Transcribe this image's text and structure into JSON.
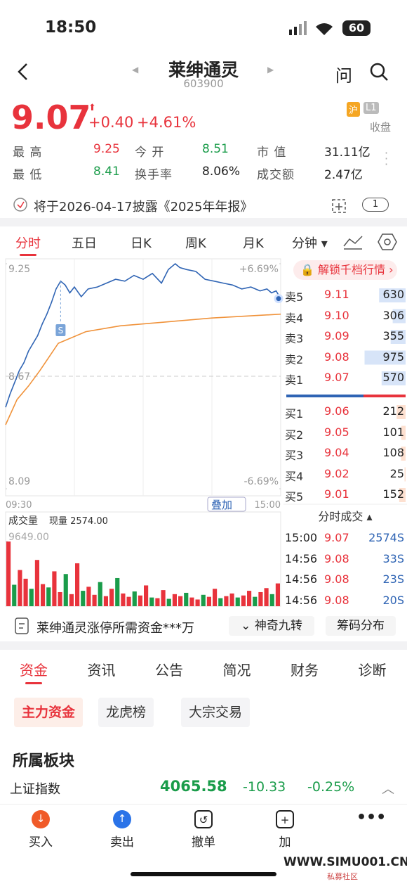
{
  "status": {
    "time": "18:50",
    "battery": "60"
  },
  "header": {
    "title": "莱绅通灵",
    "code": "603900",
    "ask": "问"
  },
  "quote": {
    "price": "9.07",
    "change": "+0.40",
    "pct": "+4.61%",
    "market": "沪",
    "level": "L1",
    "state": "收盘"
  },
  "stats": [
    {
      "label": "最 高",
      "value": "9.25"
    },
    {
      "label": "今 开",
      "value": "8.51"
    },
    {
      "label": "市 值",
      "value": "31.11亿"
    },
    {
      "label": "最 低",
      "value": "8.41"
    },
    {
      "label": "换手率",
      "value": "8.06%"
    },
    {
      "label": "成交额",
      "value": "2.47亿"
    }
  ],
  "notice": "将于2026-04-17披露《2025年年报》",
  "notice_badge": "1",
  "chart_tabs": [
    "分时",
    "五日",
    "日K",
    "周K",
    "月K",
    "分钟"
  ],
  "chart_data": {
    "type": "line",
    "xlim": [
      0,
      240
    ],
    "ylim": [
      8.09,
      9.25
    ],
    "yticks": [
      9.25,
      8.67,
      8.09
    ],
    "y2lim": [
      -6.69,
      6.69
    ],
    "y2ticks": [
      {
        "value": 6.69,
        "label": "+6.69%"
      },
      {
        "value": -6.69,
        "label": "-6.69%"
      }
    ],
    "x_labels": [
      "09:30",
      "15:00"
    ],
    "overlay": "叠加",
    "marker": "S",
    "series": [
      {
        "name": "价格",
        "color": "#2f64b4",
        "x": [
          0,
          4,
          8,
          12,
          16,
          20,
          24,
          28,
          32,
          36,
          40,
          44,
          48,
          52,
          56,
          60,
          66,
          72,
          80,
          88,
          96,
          104,
          112,
          120,
          128,
          136,
          142,
          148,
          152,
          158,
          166,
          174,
          182,
          190,
          198,
          206,
          214,
          222,
          228,
          232,
          236,
          240
        ],
        "values": [
          8.51,
          8.58,
          8.64,
          8.7,
          8.74,
          8.8,
          8.84,
          8.88,
          8.94,
          8.99,
          9.05,
          9.12,
          9.16,
          9.14,
          9.1,
          9.13,
          9.08,
          9.12,
          9.13,
          9.15,
          9.17,
          9.16,
          9.19,
          9.17,
          9.2,
          9.15,
          9.22,
          9.25,
          9.23,
          9.22,
          9.21,
          9.17,
          9.16,
          9.15,
          9.14,
          9.12,
          9.13,
          9.11,
          9.12,
          9.1,
          9.11,
          9.07
        ]
      },
      {
        "name": "均价",
        "color": "#f0923a",
        "x": [
          0,
          10,
          20,
          30,
          46,
          70,
          100,
          140,
          180,
          240
        ],
        "values": [
          8.42,
          8.55,
          8.62,
          8.7,
          8.84,
          8.9,
          8.93,
          8.95,
          8.97,
          8.99
        ]
      }
    ]
  },
  "volume": {
    "type": "bar",
    "label": "成交量",
    "current": "现量 2574.00",
    "ylim": [
      0,
      9649
    ],
    "yticks": [
      {
        "value": 9649,
        "label": "9649.00"
      }
    ],
    "values": [
      9649,
      3200,
      5400,
      4100,
      2600,
      6900,
      3300,
      2800,
      5200,
      2100,
      4800,
      1800,
      6400,
      2300,
      2900,
      1700,
      3600,
      1500,
      2600,
      4200,
      1900,
      1400,
      2200,
      1600,
      3100,
      1300,
      1200,
      2400,
      1100,
      1800,
      1500,
      2000,
      1300,
      1000,
      1700,
      1400,
      2600,
      1200,
      1500,
      1900,
      1300,
      1600,
      2300,
      1400,
      2100,
      2700,
      1800,
      3400
    ]
  },
  "order_book": {
    "unlock": "解锁千档行情",
    "sell": [
      {
        "label": "卖5",
        "price": "9.11",
        "volume": 630
      },
      {
        "label": "卖4",
        "price": "9.10",
        "volume": 306
      },
      {
        "label": "卖3",
        "price": "9.09",
        "volume": 355
      },
      {
        "label": "卖2",
        "price": "9.08",
        "volume": 975
      },
      {
        "label": "卖1",
        "price": "9.07",
        "volume": 570
      }
    ],
    "buy": [
      {
        "label": "买1",
        "price": "9.06",
        "volume": 212
      },
      {
        "label": "买2",
        "price": "9.05",
        "volume": 101
      },
      {
        "label": "买3",
        "price": "9.04",
        "volume": 108
      },
      {
        "label": "买4",
        "price": "9.02",
        "volume": 25
      },
      {
        "label": "买5",
        "price": "9.01",
        "volume": 152
      }
    ]
  },
  "trades": {
    "title": "分时成交",
    "rows": [
      [
        "15:00",
        "9.07",
        "2574S"
      ],
      [
        "14:56",
        "9.08",
        "33S"
      ],
      [
        "14:56",
        "9.08",
        "23S"
      ],
      [
        "14:56",
        "9.08",
        "20S"
      ]
    ]
  },
  "tools": [
    "莱绅通灵涨停所需资金***万",
    "神奇九转",
    "筹码分布"
  ],
  "tabs": [
    "资金",
    "资讯",
    "公告",
    "简况",
    "财务",
    "诊断"
  ],
  "subtabs": [
    "主力资金",
    "龙虎榜",
    "大宗交易"
  ],
  "section": "所属板块",
  "index": {
    "name": "上证指数",
    "value": "4065.58",
    "change": "-10.33",
    "pct": "-0.25%"
  },
  "bottom_nav": [
    "买入",
    "卖出",
    "撤单",
    "加"
  ],
  "watermark": {
    "url": "WWW.SIMU001.CN",
    "name": "私募社区"
  }
}
